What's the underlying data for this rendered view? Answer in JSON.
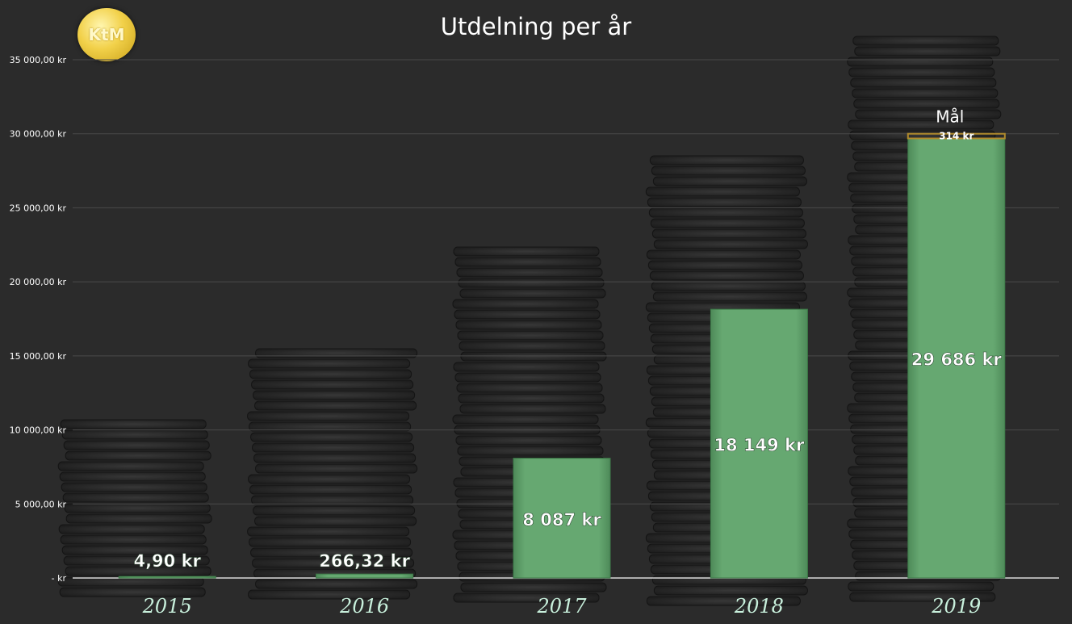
{
  "logo_text": "KtM",
  "chart_data": {
    "type": "bar",
    "title": "Utdelning per år",
    "categories": [
      "2015",
      "2016",
      "2017",
      "2018",
      "2019"
    ],
    "values": [
      4.9,
      266.32,
      8087,
      18149,
      29686
    ],
    "data_labels": [
      "4,90 kr",
      "266,32 kr",
      "8 087 kr",
      "18 149 kr",
      "29 686 kr"
    ],
    "goal": {
      "label": "Mål",
      "category": "2019",
      "remaining": 314,
      "remaining_label": "314 kr",
      "value": 30000
    },
    "ylim": [
      0,
      35000
    ],
    "yticks": [
      0,
      5000,
      10000,
      15000,
      20000,
      25000,
      30000,
      35000
    ],
    "ytick_labels": [
      "-   kr",
      "5 000,00 kr",
      "10 000,00 kr",
      "15 000,00 kr",
      "20 000,00 kr",
      "25 000,00 kr",
      "30 000,00 kr",
      "35 000,00 kr"
    ],
    "grid": true,
    "colors": {
      "bar": "#63a56e",
      "bar_edge": "#3d7a48",
      "goal_bar": "#8a6a1e",
      "category_text": "#c8f0dc",
      "gridline": "#4a4a4a"
    }
  }
}
